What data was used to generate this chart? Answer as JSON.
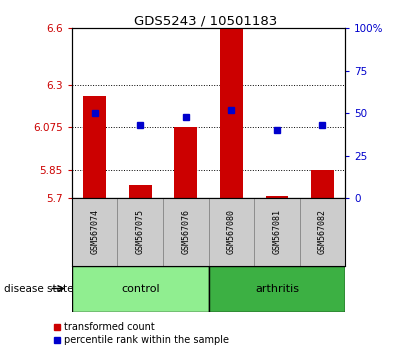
{
  "title": "GDS5243 / 10501183",
  "samples": [
    "GSM567074",
    "GSM567075",
    "GSM567076",
    "GSM567080",
    "GSM567081",
    "GSM567082"
  ],
  "transformed_count": [
    6.24,
    5.77,
    6.075,
    6.6,
    5.71,
    5.85
  ],
  "percentile_rank": [
    50,
    43,
    48,
    52,
    40,
    43
  ],
  "y_min": 5.7,
  "y_max": 6.6,
  "y_ticks": [
    5.7,
    5.85,
    6.075,
    6.3,
    6.6
  ],
  "y_tick_labels": [
    "5.7",
    "5.85",
    "6.075",
    "6.3",
    "6.6"
  ],
  "right_y_ticks": [
    0,
    25,
    50,
    75,
    100
  ],
  "right_y_tick_labels": [
    "0",
    "25",
    "50",
    "75",
    "100%"
  ],
  "groups": [
    {
      "label": "control",
      "indices": [
        0,
        1,
        2
      ],
      "color": "#90EE90"
    },
    {
      "label": "arthritis",
      "indices": [
        3,
        4,
        5
      ],
      "color": "#3CB043"
    }
  ],
  "bar_color": "#CC0000",
  "dot_color": "#0000CC",
  "bar_width": 0.5,
  "disease_state_label": "disease state",
  "legend_items": [
    {
      "label": "transformed count",
      "color": "#CC0000"
    },
    {
      "label": "percentile rank within the sample",
      "color": "#0000CC"
    }
  ],
  "grid_linestyle": ":",
  "plot_bg": "#ffffff"
}
